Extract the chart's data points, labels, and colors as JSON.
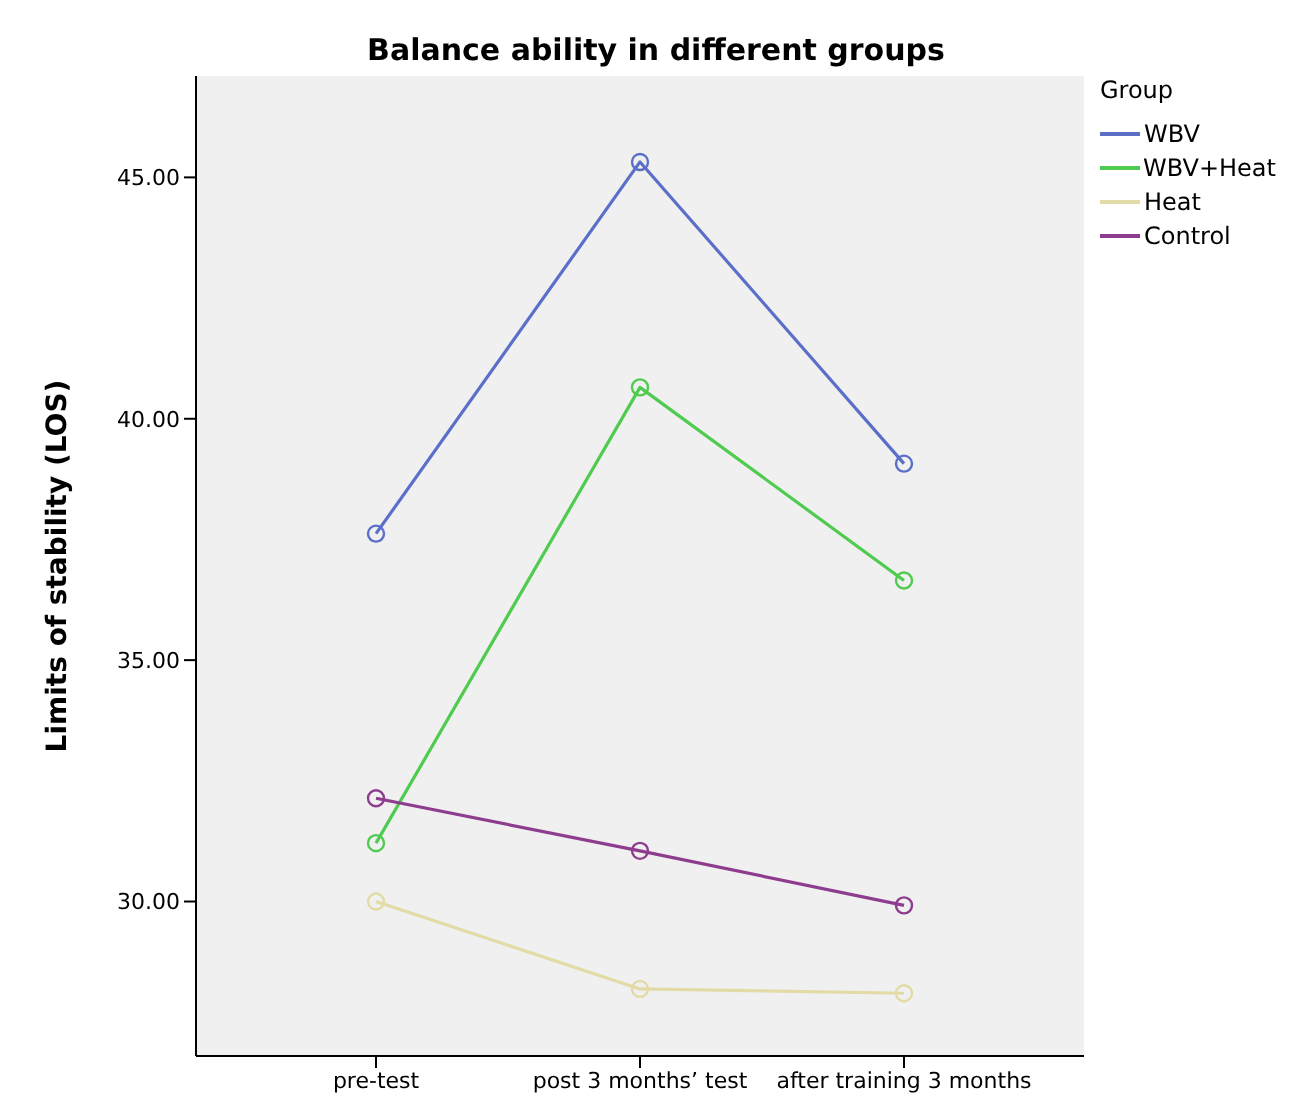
{
  "chart_data": {
    "type": "line",
    "title": "Balance ability in different groups",
    "ylabel": "Limits of stability (LOS)",
    "legend_title": "Group",
    "categories": [
      "pre-test",
      "post 3 months’ test",
      "after training 3 months"
    ],
    "series": [
      {
        "name": "WBV",
        "color": "#5b6fc9",
        "values": [
          37.62,
          45.32,
          39.07
        ]
      },
      {
        "name": "WBV+Heat",
        "color": "#4fcb4f",
        "values": [
          31.21,
          40.65,
          36.65
        ]
      },
      {
        "name": "Heat",
        "color": "#e3dba6",
        "values": [
          30.0,
          28.19,
          28.1
        ]
      },
      {
        "name": "Control",
        "color": "#8e3d8e",
        "values": [
          32.14,
          31.05,
          29.92
        ]
      }
    ],
    "ylim": [
      26.8,
      47.1
    ],
    "yticks": [
      {
        "value": 30,
        "label": "30.00"
      },
      {
        "value": 35,
        "label": "35.00"
      },
      {
        "value": 40,
        "label": "40.00"
      },
      {
        "value": 45,
        "label": "45.00"
      }
    ],
    "grid": false,
    "legend": "right",
    "marker": "circle",
    "line_style": "solid"
  }
}
